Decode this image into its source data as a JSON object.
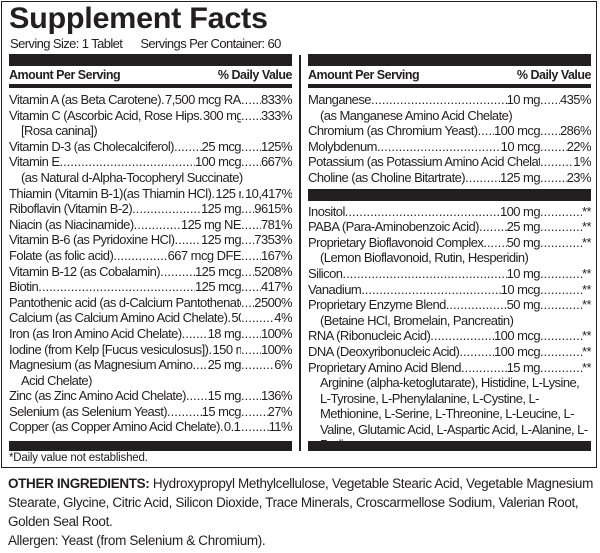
{
  "title": "Supplement Facts",
  "serving_size": "Serving Size: 1 Tablet",
  "servings_per_container": "Servings Per Container: 60",
  "header": {
    "amount": "Amount Per Serving",
    "dv": "% Daily Value"
  },
  "left_rows": [
    {
      "name": "Vitamin A (as Beta Carotene)",
      "amount": "7,500 mcg RAE",
      "dv": "833%"
    },
    {
      "name": "Vitamin C (Ascorbic Acid, Rose Hips",
      "amount": "300 mg",
      "dv": "333%",
      "sub": "[Rosa canina])"
    },
    {
      "name": "Vitamin D-3 (as Cholecalciferol)",
      "amount": "25 mcg",
      "dv": "125%"
    },
    {
      "name": "Vitamin E",
      "amount": "100 mcg",
      "dv": "667%",
      "sub": "(as Natural d-Alpha-Tocopheryl Succinate)"
    },
    {
      "name": "Thiamin (Vitamin B-1)(as Thiamin HCl)",
      "amount": "125 mg.",
      "dv": "10,417%"
    },
    {
      "name": "Riboflavin (Vitamin B-2)",
      "amount": "125 mg",
      "dv": "9615%"
    },
    {
      "name": "Niacin (as Niacinamide)",
      "amount": "125 mg NE",
      "dv": "781%"
    },
    {
      "name": "Vitamin B-6 (as Pyridoxine HCl)",
      "amount": "125 mg",
      "dv": "7353%"
    },
    {
      "name": "Folate (as folic acid)",
      "amount": "667 mcg DFE",
      "dv": "167%"
    },
    {
      "name": "Vitamin B-12 (as Cobalamin)",
      "amount": "125 mcg",
      "dv": "5208%"
    },
    {
      "name": "Biotin",
      "amount": "125 mcg",
      "dv": "417%"
    },
    {
      "name": "Pantothenic acid (as d-Calcium Pantothenate)",
      "amount": "125 mg",
      "dv": "2500%"
    },
    {
      "name": "Calcium (as Calcium Amino Acid Chelate)",
      "amount": "50 mg",
      "dv": "4%"
    },
    {
      "name": "Iron (as Iron Amino Acid Chelate)",
      "amount": "18 mg",
      "dv": "100%"
    },
    {
      "name": "Iodine (from Kelp [Fucus vesiculosus])",
      "amount": "150 mcg",
      "dv": "100%"
    },
    {
      "name": "Magnesium (as Magnesium Amino",
      "amount": "25 mg",
      "dv": "6%",
      "sub": "Acid Chelate)"
    },
    {
      "name": "Zinc (as Zinc Amino Acid Chelate)",
      "amount": "15 mg",
      "dv": "136%"
    },
    {
      "name": "Selenium (as Selenium Yeast)",
      "amount": "15 mcg",
      "dv": "27%"
    },
    {
      "name": "Copper (as Copper Amino Acid Chelate)",
      "amount": "0.1 mg",
      "dv": "11%"
    }
  ],
  "right_rows_top": [
    {
      "name": "Manganese",
      "amount": "10 mg",
      "dv": "435%",
      "sub": "(as Manganese Amino Acid Chelate)"
    },
    {
      "name": "Chromium (as Chromium Yeast)",
      "amount": "100 mcg",
      "dv": "286%"
    },
    {
      "name": "Molybdenum",
      "amount": "10 mcg",
      "dv": "22%"
    },
    {
      "name": "Potassium (as Potassium Amino Acid Chelate)",
      "amount": "25 mg",
      "dv": "1%"
    },
    {
      "name": "Choline (as Choline Bitartrate)",
      "amount": "125 mg",
      "dv": "23%"
    }
  ],
  "right_rows_bottom": [
    {
      "name": "Inositol",
      "amount": "100 mg",
      "dv": "**"
    },
    {
      "name": "PABA (Para-Aminobenzoic Acid)",
      "amount": "25 mg",
      "dv": "**"
    },
    {
      "name": "Proprietary Bioflavonoid Complex",
      "amount": "50 mg",
      "dv": "**",
      "sub": "(Lemon Bioflavonoid, Rutin, Hesperidin)"
    },
    {
      "name": "Silicon",
      "amount": "10 mg",
      "dv": "**"
    },
    {
      "name": "Vanadium",
      "amount": "10 mcg",
      "dv": "**"
    },
    {
      "name": "Proprietary Enzyme Blend",
      "amount": "50 mg",
      "dv": "**",
      "sub": "(Betaine HCl, Bromelain, Pancreatin)"
    },
    {
      "name": "RNA (Ribonucleic Acid)",
      "amount": "100 mcg",
      "dv": "**"
    },
    {
      "name": "DNA (Deoxyribonucleic Acid)",
      "amount": "100 mcg",
      "dv": "**"
    },
    {
      "name": "Proprietary Amino Acid Blend",
      "amount": "15 mg",
      "dv": "**",
      "blend": "Arginine (alpha-ketoglutarate), Histidine, L-Lysine, L-Tyrosine, L-Phenylalanine, L-Cystine, L-Methionine, L-Serine, L-Threonine, L-Leucine, L-Valine, Glutamic Acid, L-Aspartic Acid, L-Alanine, L-Proline"
    }
  ],
  "footnote": "*Daily value not established.",
  "other_ingredients": {
    "label": "OTHER INGREDIENTS:",
    "text": "Hydroxypropyl Methylcellulose, Vegetable Stearic Acid, Vegetable Magnesium Stearate, Glycine, Citric Acid, Silicon Dioxide, Trace Minerals, Croscarmellose Sodium, Valerian Root, Golden Seal Root."
  },
  "allergen": "Allergen: Yeast (from Selenium & Chromium)."
}
